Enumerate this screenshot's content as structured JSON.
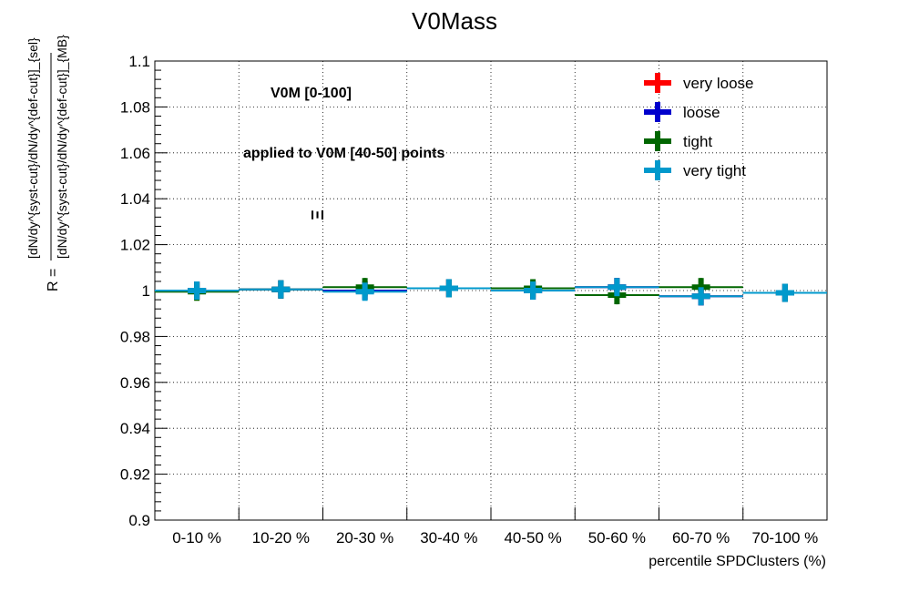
{
  "chart_data": {
    "type": "scatter",
    "title": "V0Mass",
    "xlabel": "percentile SPDClusters (%)",
    "ylabel": {
      "prefix": "R =",
      "numerator": "[dN/dy^{syst-cut}/dN/dy^{def-cut}]_{sel}",
      "denominator": "[dN/dy^{syst-cut}/dN/dy^{def-cut}]_{MB}"
    },
    "categories": [
      "0-10 %",
      "10-20 %",
      "20-30 %",
      "30-40 %",
      "40-50 %",
      "50-60 %",
      "60-70 %",
      "70-100 %"
    ],
    "ylim": [
      0.9,
      1.1
    ],
    "yticks": [
      "0.9",
      "0.92",
      "0.94",
      "0.96",
      "0.98",
      "1",
      "1.02",
      "1.04",
      "1.06",
      "1.08",
      "1.1"
    ],
    "grid": true,
    "legend_position": "top-right",
    "annotations": [
      "V0M [0-100]",
      "applied to V0M [40-50] points"
    ],
    "particle_symbol": "Ξ",
    "series": [
      {
        "name": "very loose",
        "color": "#ff0000",
        "values": [
          1.0,
          1.0005,
          1.0,
          1.001,
          1.0,
          1.0015,
          0.9975,
          0.999
        ]
      },
      {
        "name": "loose",
        "color": "#0000cc",
        "values": [
          1.0,
          1.0005,
          1.0,
          1.001,
          1.0,
          1.0015,
          0.9975,
          0.999
        ]
      },
      {
        "name": "tight",
        "color": "#006600",
        "values": [
          0.9995,
          1.0005,
          1.0015,
          1.001,
          1.001,
          0.998,
          1.0015,
          0.999
        ]
      },
      {
        "name": "very tight",
        "color": "#0099cc",
        "values": [
          1.0,
          1.0005,
          0.9995,
          1.001,
          1.0,
          1.0015,
          0.9975,
          0.999
        ]
      }
    ],
    "errors": {
      "tight": [
        0.003,
        0.002,
        0.004,
        0.002,
        0.003,
        0.004,
        0.004,
        0.002
      ],
      "default": [
        0.002,
        0.002,
        0.002,
        0.002,
        0.002,
        0.002,
        0.002,
        0.002
      ]
    }
  }
}
